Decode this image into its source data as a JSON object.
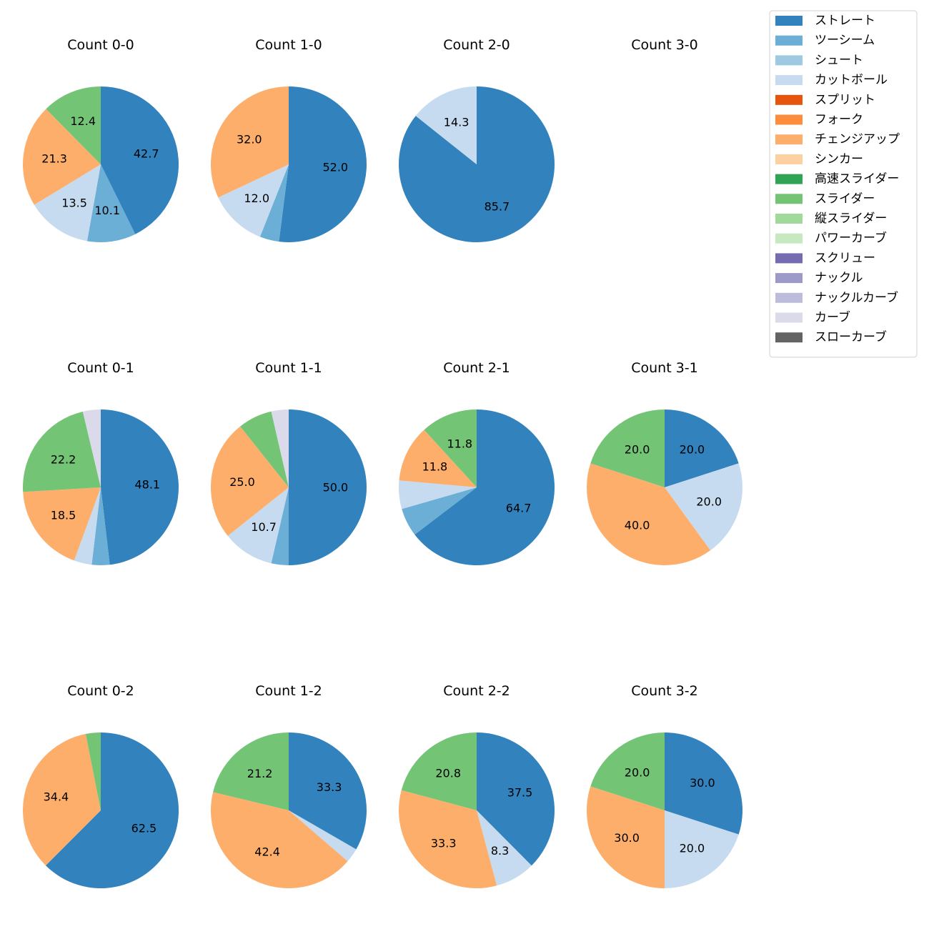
{
  "chart_data": {
    "type": "pie",
    "legend_position": "top-right",
    "pitch_types": [
      {
        "name": "ストレート",
        "color": "#3182bd"
      },
      {
        "name": "ツーシーム",
        "color": "#6baed6"
      },
      {
        "name": "シュート",
        "color": "#9ecae1"
      },
      {
        "name": "カットボール",
        "color": "#c6dbef"
      },
      {
        "name": "スプリット",
        "color": "#e6550d"
      },
      {
        "name": "フォーク",
        "color": "#fd8d3c"
      },
      {
        "name": "チェンジアップ",
        "color": "#fdae6b"
      },
      {
        "name": "シンカー",
        "color": "#fdd0a2"
      },
      {
        "name": "高速スライダー",
        "color": "#31a354"
      },
      {
        "name": "スライダー",
        "color": "#74c476"
      },
      {
        "name": "縦スライダー",
        "color": "#a1d99b"
      },
      {
        "name": "パワーカーブ",
        "color": "#c7e9c0"
      },
      {
        "name": "スクリュー",
        "color": "#756bb1"
      },
      {
        "name": "ナックル",
        "color": "#9e9ac8"
      },
      {
        "name": "ナックルカーブ",
        "color": "#bcbddc"
      },
      {
        "name": "カーブ",
        "color": "#dadaeb"
      },
      {
        "name": "スローカーブ",
        "color": "#636363"
      }
    ],
    "pies": [
      {
        "title": "Count 0-0",
        "slices": [
          {
            "pitch": "ストレート",
            "value": 42.7,
            "label": "42.7"
          },
          {
            "pitch": "ツーシーム",
            "value": 10.1,
            "label": "10.1"
          },
          {
            "pitch": "カットボール",
            "value": 13.5,
            "label": "13.5"
          },
          {
            "pitch": "チェンジアップ",
            "value": 21.3,
            "label": "21.3"
          },
          {
            "pitch": "スライダー",
            "value": 12.4,
            "label": "12.4"
          }
        ]
      },
      {
        "title": "Count 1-0",
        "slices": [
          {
            "pitch": "ストレート",
            "value": 52.0,
            "label": "52.0"
          },
          {
            "pitch": "ツーシーム",
            "value": 4.0,
            "label": ""
          },
          {
            "pitch": "カットボール",
            "value": 12.0,
            "label": "12.0"
          },
          {
            "pitch": "チェンジアップ",
            "value": 32.0,
            "label": "32.0"
          }
        ]
      },
      {
        "title": "Count 2-0",
        "slices": [
          {
            "pitch": "ストレート",
            "value": 85.7,
            "label": "85.7"
          },
          {
            "pitch": "カットボール",
            "value": 14.3,
            "label": "14.3"
          }
        ]
      },
      {
        "title": "Count 3-0",
        "slices": []
      },
      {
        "title": "Count 0-1",
        "slices": [
          {
            "pitch": "ストレート",
            "value": 48.1,
            "label": "48.1"
          },
          {
            "pitch": "ツーシーム",
            "value": 3.7,
            "label": ""
          },
          {
            "pitch": "カットボール",
            "value": 3.7,
            "label": ""
          },
          {
            "pitch": "チェンジアップ",
            "value": 18.5,
            "label": "18.5"
          },
          {
            "pitch": "スライダー",
            "value": 22.2,
            "label": "22.2"
          },
          {
            "pitch": "カーブ",
            "value": 3.7,
            "label": ""
          }
        ]
      },
      {
        "title": "Count 1-1",
        "slices": [
          {
            "pitch": "ストレート",
            "value": 50.0,
            "label": "50.0"
          },
          {
            "pitch": "ツーシーム",
            "value": 3.6,
            "label": ""
          },
          {
            "pitch": "カットボール",
            "value": 10.7,
            "label": "10.7"
          },
          {
            "pitch": "チェンジアップ",
            "value": 25.0,
            "label": "25.0"
          },
          {
            "pitch": "スライダー",
            "value": 7.1,
            "label": ""
          },
          {
            "pitch": "カーブ",
            "value": 3.6,
            "label": ""
          }
        ]
      },
      {
        "title": "Count 2-1",
        "slices": [
          {
            "pitch": "ストレート",
            "value": 64.7,
            "label": "64.7"
          },
          {
            "pitch": "ツーシーム",
            "value": 5.9,
            "label": ""
          },
          {
            "pitch": "カットボール",
            "value": 5.9,
            "label": ""
          },
          {
            "pitch": "チェンジアップ",
            "value": 11.8,
            "label": "11.8"
          },
          {
            "pitch": "スライダー",
            "value": 11.8,
            "label": "11.8"
          }
        ]
      },
      {
        "title": "Count 3-1",
        "slices": [
          {
            "pitch": "ストレート",
            "value": 20.0,
            "label": "20.0"
          },
          {
            "pitch": "カットボール",
            "value": 20.0,
            "label": "20.0"
          },
          {
            "pitch": "チェンジアップ",
            "value": 40.0,
            "label": "40.0"
          },
          {
            "pitch": "スライダー",
            "value": 20.0,
            "label": "20.0"
          }
        ]
      },
      {
        "title": "Count 0-2",
        "slices": [
          {
            "pitch": "ストレート",
            "value": 62.5,
            "label": "62.5"
          },
          {
            "pitch": "チェンジアップ",
            "value": 34.4,
            "label": "34.4"
          },
          {
            "pitch": "スライダー",
            "value": 3.1,
            "label": ""
          }
        ]
      },
      {
        "title": "Count 1-2",
        "slices": [
          {
            "pitch": "ストレート",
            "value": 33.3,
            "label": "33.3"
          },
          {
            "pitch": "カットボール",
            "value": 3.0,
            "label": ""
          },
          {
            "pitch": "チェンジアップ",
            "value": 42.4,
            "label": "42.4"
          },
          {
            "pitch": "スライダー",
            "value": 21.2,
            "label": "21.2"
          }
        ]
      },
      {
        "title": "Count 2-2",
        "slices": [
          {
            "pitch": "ストレート",
            "value": 37.5,
            "label": "37.5"
          },
          {
            "pitch": "カットボール",
            "value": 8.3,
            "label": "8.3"
          },
          {
            "pitch": "チェンジアップ",
            "value": 33.3,
            "label": "33.3"
          },
          {
            "pitch": "スライダー",
            "value": 20.8,
            "label": "20.8"
          }
        ]
      },
      {
        "title": "Count 3-2",
        "slices": [
          {
            "pitch": "ストレート",
            "value": 30.0,
            "label": "30.0"
          },
          {
            "pitch": "カットボール",
            "value": 20.0,
            "label": "20.0"
          },
          {
            "pitch": "チェンジアップ",
            "value": 30.0,
            "label": "30.0"
          },
          {
            "pitch": "スライダー",
            "value": 20.0,
            "label": "20.0"
          }
        ]
      }
    ]
  }
}
